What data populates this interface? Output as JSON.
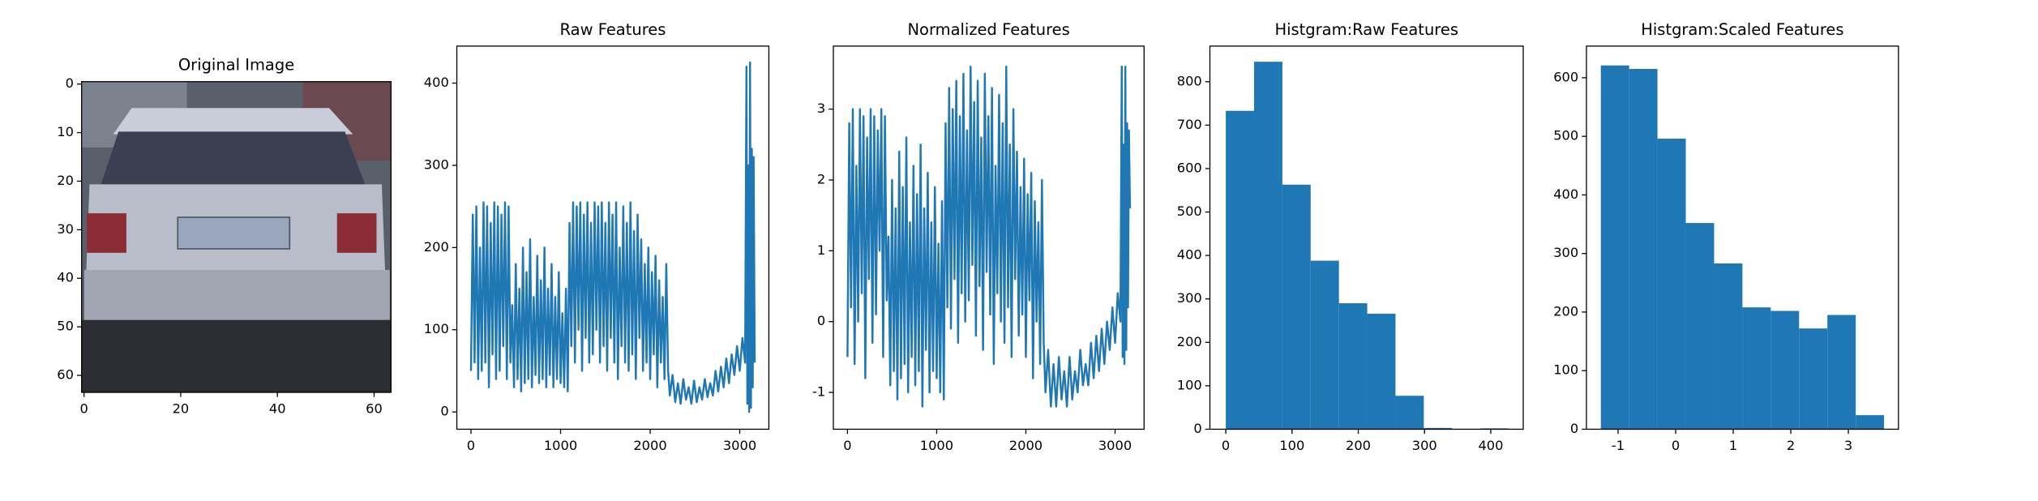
{
  "chart_data": [
    {
      "type": "image",
      "title": "Original Image",
      "xlim": [
        -0.5,
        63.5
      ],
      "ylim": [
        63.5,
        -0.5
      ],
      "xticks": [
        0,
        20,
        40,
        60
      ],
      "yticks": [
        0,
        10,
        20,
        30,
        40,
        50,
        60
      ]
    },
    {
      "type": "line",
      "title": "Raw Features",
      "color": "#1f77b4",
      "xlim": [
        -158,
        3325
      ],
      "ylim": [
        -21,
        445
      ],
      "xticks": [
        0,
        1000,
        2000,
        3000
      ],
      "yticks": [
        0,
        100,
        200,
        300,
        400
      ],
      "x": [
        0,
        20,
        40,
        60,
        80,
        100,
        120,
        140,
        160,
        180,
        200,
        220,
        240,
        260,
        280,
        300,
        320,
        340,
        360,
        380,
        400,
        420,
        440,
        460,
        480,
        500,
        520,
        540,
        560,
        580,
        600,
        620,
        640,
        660,
        680,
        700,
        720,
        740,
        760,
        780,
        800,
        820,
        840,
        860,
        880,
        900,
        920,
        940,
        960,
        980,
        1000,
        1020,
        1040,
        1060,
        1080,
        1100,
        1120,
        1140,
        1160,
        1180,
        1200,
        1220,
        1240,
        1260,
        1280,
        1300,
        1320,
        1340,
        1360,
        1380,
        1400,
        1420,
        1440,
        1460,
        1480,
        1500,
        1520,
        1540,
        1560,
        1580,
        1600,
        1620,
        1640,
        1660,
        1680,
        1700,
        1720,
        1740,
        1760,
        1780,
        1800,
        1820,
        1840,
        1860,
        1880,
        1900,
        1920,
        1940,
        1960,
        1980,
        2000,
        2020,
        2040,
        2060,
        2080,
        2100,
        2120,
        2140,
        2160,
        2180,
        2200,
        2220,
        2250,
        2280,
        2310,
        2340,
        2370,
        2400,
        2430,
        2460,
        2490,
        2520,
        2550,
        2580,
        2610,
        2640,
        2670,
        2700,
        2730,
        2760,
        2790,
        2820,
        2850,
        2880,
        2910,
        2940,
        2970,
        3000,
        3030,
        3060,
        3075,
        3085,
        3095,
        3105,
        3115,
        3125,
        3135,
        3145,
        3155,
        3167
      ],
      "values": [
        50,
        240,
        60,
        250,
        40,
        200,
        50,
        255,
        60,
        250,
        30,
        230,
        70,
        255,
        40,
        250,
        50,
        240,
        80,
        255,
        40,
        250,
        60,
        130,
        30,
        180,
        40,
        150,
        25,
        200,
        35,
        170,
        40,
        210,
        30,
        140,
        45,
        190,
        35,
        160,
        40,
        200,
        30,
        150,
        45,
        180,
        30,
        140,
        40,
        170,
        35,
        120,
        30,
        150,
        25,
        230,
        80,
        255,
        60,
        250,
        100,
        255,
        50,
        240,
        90,
        255,
        60,
        230,
        70,
        255,
        100,
        250,
        60,
        255,
        80,
        230,
        50,
        255,
        90,
        240,
        60,
        255,
        40,
        200,
        80,
        250,
        60,
        230,
        50,
        255,
        70,
        220,
        40,
        240,
        90,
        210,
        50,
        180,
        60,
        200,
        40,
        170,
        70,
        190,
        30,
        160,
        60,
        140,
        40,
        180,
        50,
        20,
        45,
        12,
        35,
        10,
        40,
        15,
        30,
        10,
        38,
        12,
        30,
        15,
        40,
        18,
        35,
        20,
        50,
        25,
        55,
        30,
        65,
        35,
        70,
        45,
        80,
        50,
        90,
        60,
        420,
        10,
        300,
        0,
        425,
        5,
        320,
        30,
        310,
        60
      ]
    },
    {
      "type": "line",
      "title": "Normalized Features",
      "color": "#1f77b4",
      "xlim": [
        -158,
        3325
      ],
      "ylim": [
        -1.52,
        3.89
      ],
      "xticks": [
        0,
        1000,
        2000,
        3000
      ],
      "yticks": [
        -1,
        0,
        1,
        2,
        3
      ],
      "x": [
        0,
        20,
        40,
        60,
        80,
        100,
        120,
        140,
        160,
        180,
        200,
        220,
        240,
        260,
        280,
        300,
        320,
        340,
        360,
        380,
        400,
        420,
        440,
        460,
        480,
        500,
        520,
        540,
        560,
        580,
        600,
        620,
        640,
        660,
        680,
        700,
        720,
        740,
        760,
        780,
        800,
        820,
        840,
        860,
        880,
        900,
        920,
        940,
        960,
        980,
        1000,
        1020,
        1040,
        1060,
        1080,
        1100,
        1120,
        1140,
        1160,
        1180,
        1200,
        1220,
        1240,
        1260,
        1280,
        1300,
        1320,
        1340,
        1360,
        1380,
        1400,
        1420,
        1440,
        1460,
        1480,
        1500,
        1520,
        1540,
        1560,
        1580,
        1600,
        1620,
        1640,
        1660,
        1680,
        1700,
        1720,
        1740,
        1760,
        1780,
        1800,
        1820,
        1840,
        1860,
        1880,
        1900,
        1920,
        1940,
        1960,
        1980,
        2000,
        2020,
        2040,
        2060,
        2080,
        2100,
        2120,
        2140,
        2160,
        2180,
        2200,
        2220,
        2250,
        2280,
        2310,
        2340,
        2370,
        2400,
        2430,
        2460,
        2490,
        2520,
        2550,
        2580,
        2610,
        2640,
        2670,
        2700,
        2730,
        2760,
        2790,
        2820,
        2850,
        2880,
        2910,
        2940,
        2970,
        3000,
        3030,
        3060,
        3075,
        3085,
        3095,
        3105,
        3115,
        3125,
        3135,
        3145,
        3155,
        3167
      ],
      "values": [
        -0.5,
        2.8,
        0.2,
        3.0,
        -0.6,
        2.2,
        0.0,
        3.0,
        0.4,
        2.9,
        -0.8,
        2.6,
        0.6,
        3.0,
        -0.3,
        2.9,
        0.1,
        2.7,
        1.0,
        3.0,
        -0.5,
        2.9,
        0.3,
        1.2,
        -0.9,
        2.0,
        -0.7,
        1.6,
        -1.1,
        2.4,
        -0.8,
        1.9,
        -0.6,
        2.6,
        -1.0,
        1.4,
        -0.5,
        2.2,
        -0.9,
        1.8,
        -0.7,
        2.5,
        -1.2,
        1.6,
        -0.4,
        2.1,
        -1.0,
        1.4,
        -0.7,
        1.9,
        -0.8,
        1.1,
        -1.0,
        1.7,
        -1.1,
        2.8,
        0.2,
        3.3,
        -0.1,
        3.0,
        0.6,
        3.4,
        -0.3,
        2.9,
        0.4,
        3.5,
        0.0,
        2.7,
        0.3,
        3.6,
        0.8,
        3.1,
        -0.2,
        3.4,
        0.5,
        2.6,
        -0.4,
        3.5,
        0.7,
        2.9,
        0.1,
        3.3,
        -0.6,
        2.2,
        0.4,
        3.2,
        0.0,
        2.8,
        -0.3,
        3.6,
        0.2,
        2.5,
        -0.5,
        3.0,
        0.6,
        2.4,
        -0.2,
        1.9,
        0.1,
        2.3,
        -0.5,
        1.8,
        0.3,
        2.1,
        -0.8,
        1.7,
        0.0,
        1.4,
        -0.6,
        2.0,
        -0.3,
        -1.0,
        -0.4,
        -1.2,
        -0.6,
        -1.2,
        -0.5,
        -1.1,
        -0.7,
        -1.2,
        -0.5,
        -1.1,
        -0.7,
        -1.0,
        -0.4,
        -0.9,
        -0.6,
        -0.9,
        -0.3,
        -0.8,
        -0.2,
        -0.7,
        -0.1,
        -0.6,
        0.0,
        -0.4,
        0.2,
        -0.3,
        0.4,
        0.0,
        3.6,
        -0.5,
        2.5,
        -0.6,
        3.6,
        -0.4,
        2.8,
        0.2,
        2.7,
        1.6
      ]
    },
    {
      "type": "histogram",
      "title": "Histgram:Raw Features",
      "color": "#1f77b4",
      "xlim": [
        -24,
        449
      ],
      "ylim": [
        0,
        882
      ],
      "xticks": [
        0,
        100,
        200,
        300,
        400
      ],
      "yticks": [
        0,
        100,
        200,
        300,
        400,
        500,
        600,
        700,
        800
      ],
      "bins": [
        0,
        42.7,
        85.4,
        128.1,
        170.8,
        213.5,
        256.2,
        298.9,
        341.6,
        384.3,
        427
      ],
      "values": [
        733,
        846,
        563,
        388,
        290,
        266,
        77,
        3,
        0,
        2
      ]
    },
    {
      "type": "histogram",
      "title": "Histgram:Scaled Features",
      "color": "#1f77b4",
      "xlim": [
        -1.55,
        3.87
      ],
      "ylim": [
        0,
        654
      ],
      "xticks": [
        -1,
        0,
        1,
        2,
        3
      ],
      "yticks": [
        0,
        100,
        200,
        300,
        400,
        500,
        600
      ],
      "bins": [
        -1.3,
        -0.808,
        -0.316,
        0.176,
        0.668,
        1.16,
        1.652,
        2.144,
        2.636,
        3.128,
        3.62
      ],
      "values": [
        621,
        615,
        496,
        352,
        283,
        208,
        202,
        172,
        195,
        24
      ]
    }
  ]
}
